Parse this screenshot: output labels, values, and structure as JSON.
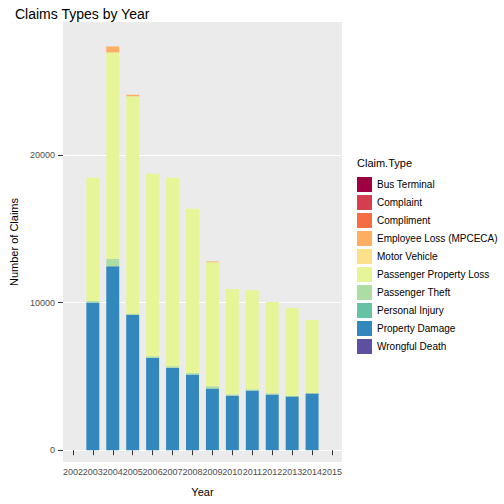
{
  "chart_data": {
    "type": "bar",
    "title": "Claims Types by Year",
    "x_label": "Year",
    "y_label": "Number of Claims",
    "legend_title": "Claim.Type",
    "legend": "right",
    "stacked": true,
    "grid": true,
    "categories": [
      "2002",
      "2003",
      "2004",
      "2005",
      "2006",
      "2007",
      "2008",
      "2009",
      "2010",
      "2011",
      "2012",
      "2013",
      "2014",
      "2015"
    ],
    "ylim": [
      -800,
      29000
    ],
    "yticks": [
      0,
      10000,
      20000
    ],
    "series": [
      {
        "name": "Bus Terminal",
        "color": "#9E0142",
        "values": [
          null,
          0,
          0,
          0,
          0,
          0,
          0,
          0,
          0,
          0,
          0,
          0,
          0,
          null
        ]
      },
      {
        "name": "Complaint",
        "color": "#D53E4F",
        "values": [
          null,
          0,
          0,
          0,
          0,
          0,
          0,
          0,
          0,
          0,
          0,
          0,
          0,
          null
        ]
      },
      {
        "name": "Compliment",
        "color": "#F46D43",
        "values": [
          null,
          0,
          0,
          0,
          0,
          0,
          0,
          0,
          0,
          0,
          0,
          0,
          0,
          null
        ]
      },
      {
        "name": "Employee Loss (MPCECA)",
        "color": "#FDAE61",
        "values": [
          null,
          0,
          400,
          100,
          0,
          0,
          0,
          50,
          0,
          0,
          0,
          0,
          0,
          null
        ]
      },
      {
        "name": "Motor Vehicle",
        "color": "#FEE08B",
        "values": [
          null,
          0,
          0,
          0,
          0,
          0,
          0,
          0,
          0,
          0,
          0,
          0,
          0,
          null
        ]
      },
      {
        "name": "Passenger Property Loss",
        "color": "#E6F598",
        "values": [
          null,
          8350,
          13980,
          14710,
          12360,
          12760,
          11140,
          8400,
          7130,
          6720,
          6180,
          5960,
          4950,
          null
        ]
      },
      {
        "name": "Passenger Theft",
        "color": "#ABDDA4",
        "values": [
          null,
          100,
          500,
          100,
          100,
          100,
          100,
          150,
          80,
          80,
          80,
          30,
          30,
          null
        ]
      },
      {
        "name": "Personal Injury",
        "color": "#66C2A5",
        "values": [
          null,
          0,
          0,
          0,
          0,
          0,
          0,
          0,
          0,
          0,
          0,
          0,
          0,
          null
        ]
      },
      {
        "name": "Property Damage",
        "color": "#3288BD",
        "values": [
          null,
          10000,
          12460,
          9160,
          6260,
          5590,
          5120,
          4180,
          3700,
          4040,
          3770,
          3640,
          3840,
          null
        ]
      },
      {
        "name": "Wrongful Death",
        "color": "#5E4FA2",
        "values": [
          null,
          0,
          0,
          0,
          0,
          0,
          0,
          0,
          0,
          0,
          0,
          0,
          0,
          null
        ]
      }
    ]
  }
}
